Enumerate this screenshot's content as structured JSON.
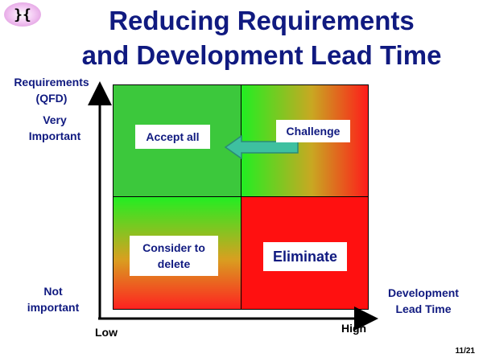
{
  "logo": {
    "glyph": "}{"
  },
  "title": {
    "line1": "Reducing Requirements",
    "line2": "and Development Lead Time"
  },
  "axes": {
    "y_label_line1": "Requirements",
    "y_label_line2": "(QFD)",
    "y_high_line1": "Very",
    "y_high_line2": "Important",
    "y_low_line1": "Not",
    "y_low_line2": "important",
    "x_low": "Low",
    "x_high": "High",
    "x_label_line1": "Development",
    "x_label_line2": "Lead Time"
  },
  "quadrants": {
    "top_left": "Accept all",
    "top_right": "Challenge",
    "bottom_left_line1": "Consider to",
    "bottom_left_line2": "delete",
    "bottom_right": "Eliminate"
  },
  "page_number": "11/21",
  "colors": {
    "title": "#101a80",
    "green": "#3cc83c",
    "red": "#ff1010",
    "arrow": "#3ec0a0"
  }
}
